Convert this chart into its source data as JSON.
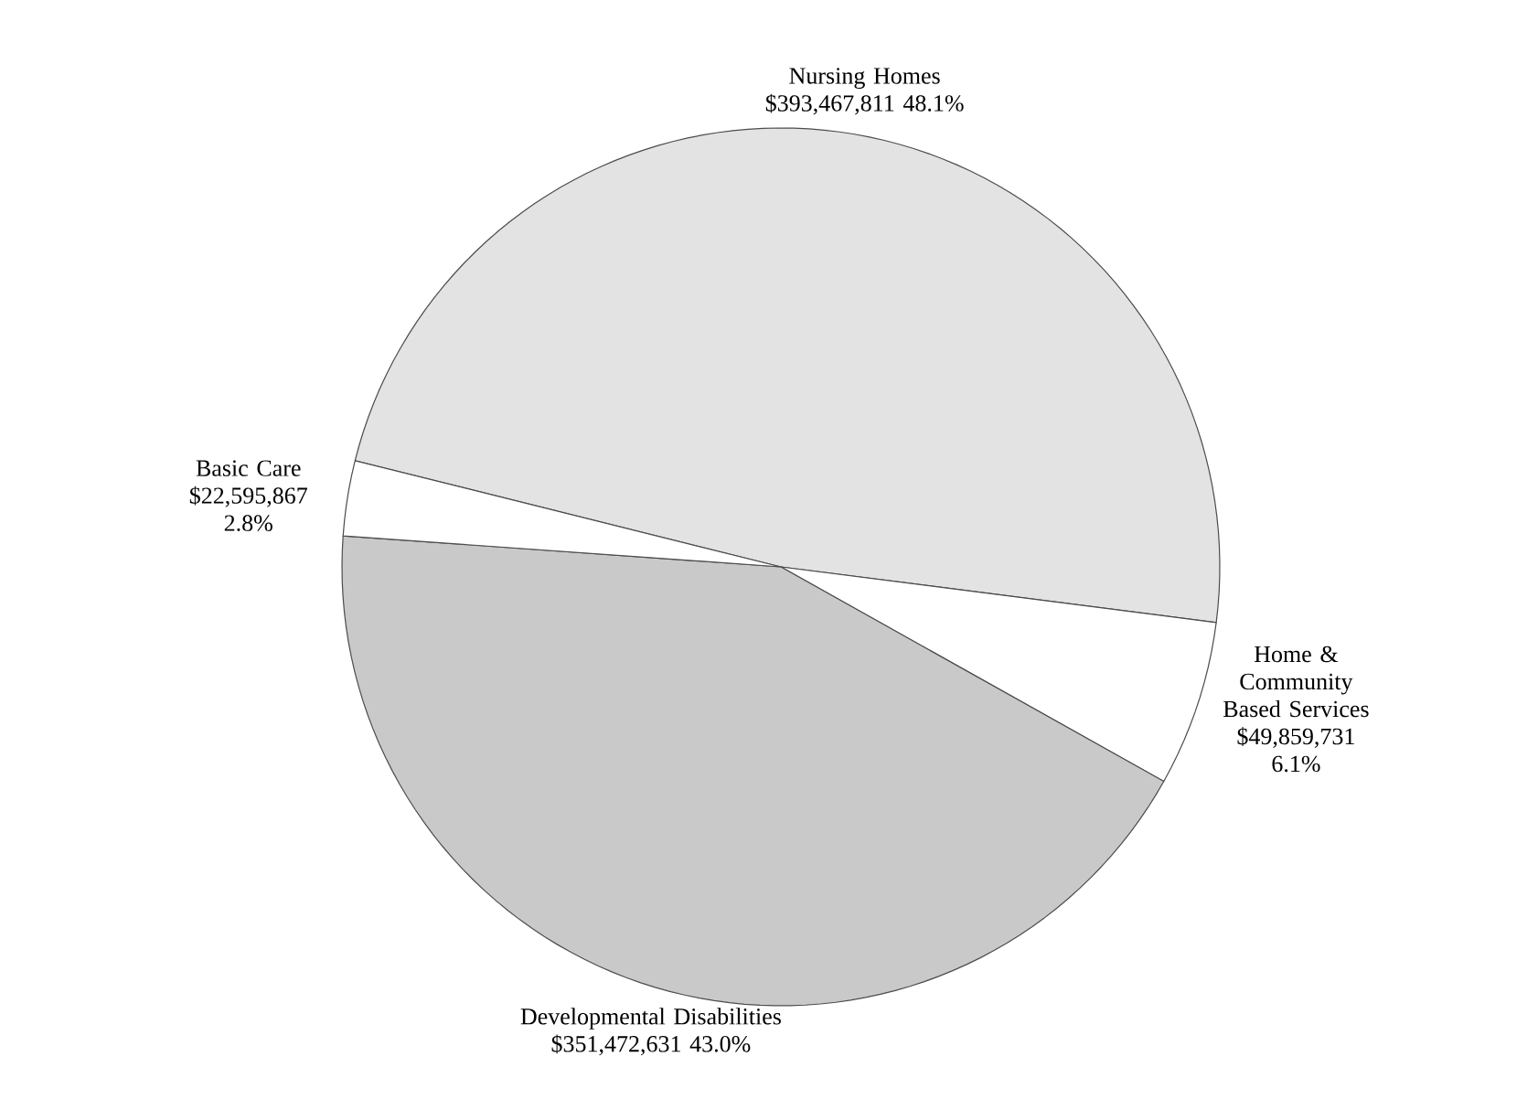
{
  "chart_data": {
    "type": "pie",
    "categories": [
      "Nursing Homes",
      "Home & Community Based Services",
      "Developmental Disabilities",
      "Basic Care"
    ],
    "values": [
      393467811,
      49859731,
      351472631,
      22595867
    ],
    "value_labels": [
      "$393,467,811  48.1%",
      "$49,859,731  6.1%",
      "$351,472,631  43.0%",
      "$22,595,867  2.8%"
    ],
    "colors": [
      "#e3e3e3",
      "#ffffff",
      "#c9c9c9",
      "#ffffff"
    ]
  }
}
